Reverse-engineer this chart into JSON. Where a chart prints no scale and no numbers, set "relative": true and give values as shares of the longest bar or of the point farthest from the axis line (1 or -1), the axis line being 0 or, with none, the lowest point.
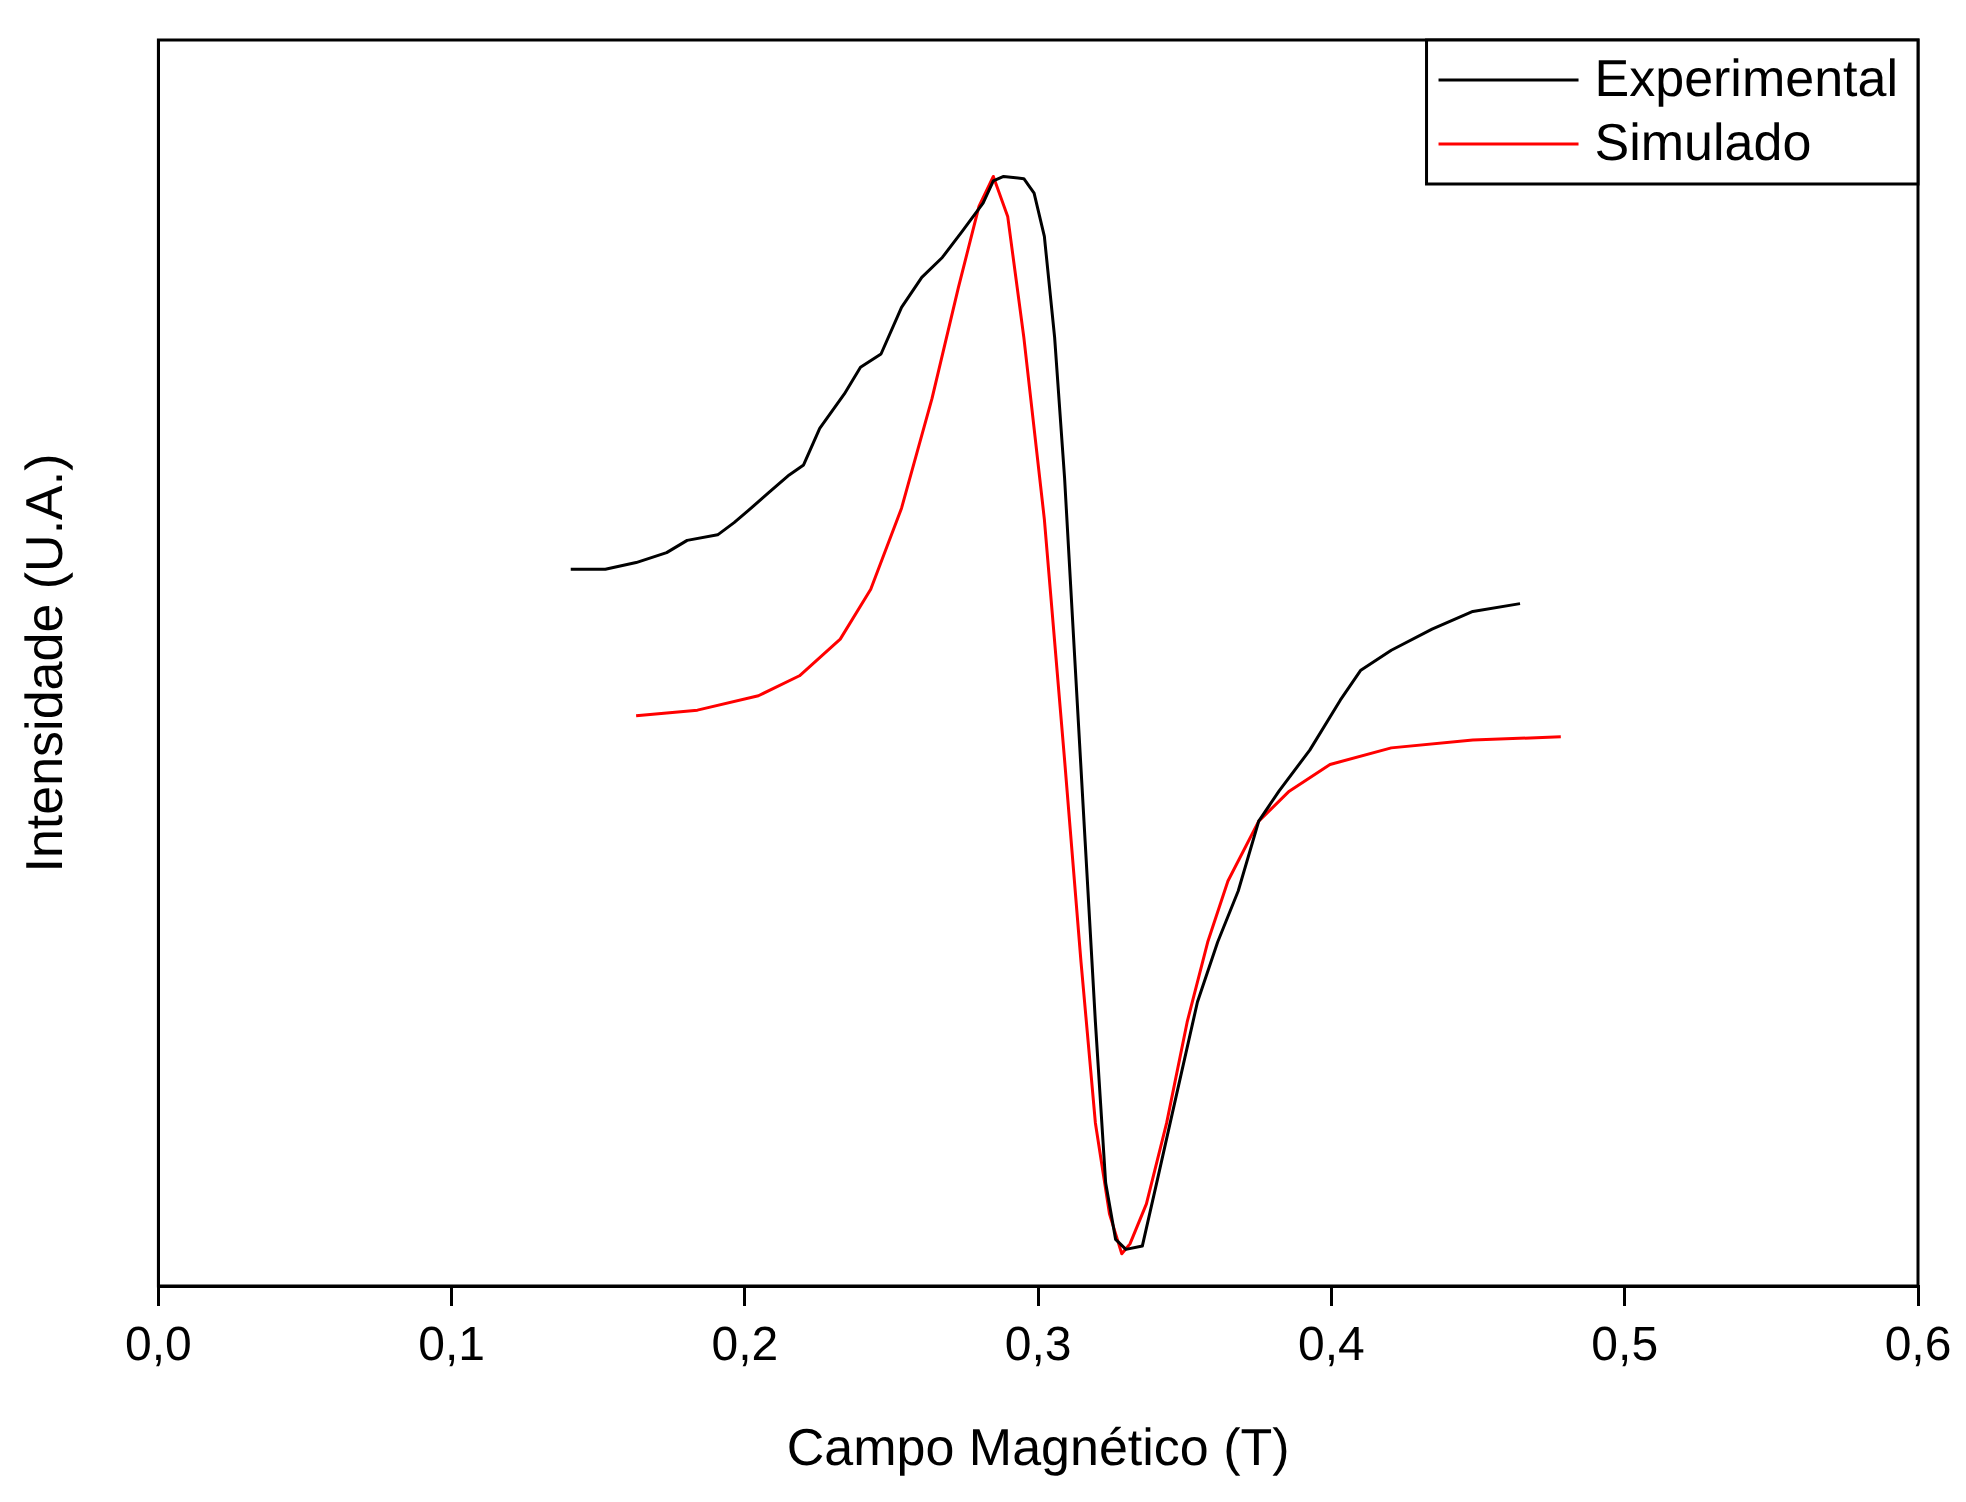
{
  "chart_data": {
    "type": "line",
    "relative": true,
    "xlabel": "Campo Magnético (T)",
    "ylabel": "Intensidade (U.A.)",
    "xlim": [
      0,
      0.6
    ],
    "xticks": [
      {
        "value": 0,
        "label": "0,0"
      },
      {
        "value": 0.1,
        "label": "0,1"
      },
      {
        "value": 0.2,
        "label": "0,2"
      },
      {
        "value": 0.3,
        "label": "0,3"
      },
      {
        "value": 0.4,
        "label": "0,4"
      },
      {
        "value": 0.5,
        "label": "0,5"
      },
      {
        "value": 0.6,
        "label": "0,6"
      }
    ],
    "grid": false,
    "legend": "top right",
    "marker": "none",
    "line_style": "solid",
    "series": [
      {
        "name": "Experimental",
        "color": "#000000",
        "x": [
          0.1406,
          0.1524,
          0.1629,
          0.1733,
          0.1803,
          0.1907,
          0.1963,
          0.2012,
          0.2081,
          0.2151,
          0.22,
          0.2255,
          0.2339,
          0.2394,
          0.2464,
          0.2534,
          0.2603,
          0.2673,
          0.2742,
          0.2812,
          0.2847,
          0.2882,
          0.2951,
          0.2986,
          0.3021,
          0.3056,
          0.309,
          0.3125,
          0.316,
          0.3195,
          0.323,
          0.3264,
          0.3299,
          0.3355,
          0.3404,
          0.3473,
          0.3543,
          0.3612,
          0.3682,
          0.3752,
          0.3821,
          0.3926,
          0.403,
          0.41,
          0.4204,
          0.4343,
          0.4482,
          0.4643
        ],
        "values": [
          0.646,
          0.646,
          0.652,
          0.661,
          0.672,
          0.677,
          0.688,
          0.699,
          0.715,
          0.731,
          0.74,
          0.773,
          0.804,
          0.828,
          0.84,
          0.882,
          0.909,
          0.927,
          0.951,
          0.976,
          0.996,
          1,
          0.998,
          0.985,
          0.946,
          0.855,
          0.728,
          0.564,
          0.401,
          0.238,
          0.093,
          0.042,
          0.033,
          0.036,
          0.093,
          0.174,
          0.256,
          0.31,
          0.356,
          0.419,
          0.446,
          0.483,
          0.528,
          0.555,
          0.573,
          0.592,
          0.608,
          0.615
        ]
      },
      {
        "name": "Simulado",
        "color": "#ff0000",
        "x": [
          0.1629,
          0.1838,
          0.2046,
          0.2186,
          0.2325,
          0.2429,
          0.2534,
          0.2638,
          0.2728,
          0.2798,
          0.2847,
          0.2896,
          0.2951,
          0.3021,
          0.309,
          0.3146,
          0.3195,
          0.3243,
          0.3285,
          0.3313,
          0.3369,
          0.3438,
          0.3508,
          0.3578,
          0.3647,
          0.3752,
          0.3856,
          0.3995,
          0.4204,
          0.4482,
          0.4782
        ],
        "values": [
          0.514,
          0.519,
          0.532,
          0.55,
          0.583,
          0.628,
          0.701,
          0.8,
          0.9,
          0.973,
          1,
          0.964,
          0.855,
          0.691,
          0.474,
          0.292,
          0.147,
          0.065,
          0.029,
          0.038,
          0.074,
          0.147,
          0.238,
          0.31,
          0.365,
          0.419,
          0.446,
          0.47,
          0.485,
          0.492,
          0.495
        ]
      }
    ]
  }
}
